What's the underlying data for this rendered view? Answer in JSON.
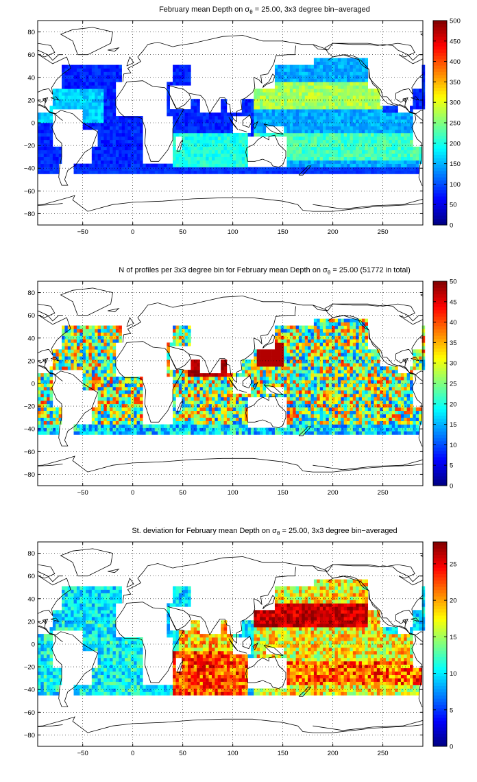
{
  "chart_data": [
    {
      "type": "heatmap",
      "title_prefix": "February mean Depth on ",
      "title_sigma": "σ",
      "title_sub": "θ",
      "title_suffix": " = 25.00, 3x3 degree bin−averaged",
      "x_ticks": [
        "−50",
        "0",
        "50",
        "100",
        "150",
        "200",
        "250"
      ],
      "x_tick_values": [
        -50,
        0,
        50,
        100,
        150,
        200,
        250
      ],
      "y_ticks": [
        "80",
        "60",
        "40",
        "20",
        "0",
        "−20",
        "−40",
        "−60",
        "−80"
      ],
      "y_tick_values": [
        80,
        60,
        40,
        20,
        0,
        -20,
        -40,
        -60,
        -80
      ],
      "xlim": [
        -95,
        290
      ],
      "ylim": [
        -90,
        90
      ],
      "grid": true,
      "grid_style": "dotted",
      "colormap": "jet",
      "colorbar_ticks": [
        "0",
        "50",
        "100",
        "150",
        "200",
        "250",
        "300",
        "350",
        "400",
        "450",
        "500"
      ],
      "colorbar_values": [
        0,
        50,
        100,
        150,
        200,
        250,
        300,
        350,
        400,
        450,
        500
      ],
      "clim": [
        0,
        500
      ],
      "field": "mean_depth",
      "bin_size_deg": 3
    },
    {
      "type": "heatmap",
      "title_prefix": "N of profiles per 3x3 degree bin for February mean Depth on ",
      "title_sigma": "σ",
      "title_sub": "θ",
      "title_suffix": " = 25.00 (51772 in total)",
      "x_ticks": [
        "−50",
        "0",
        "50",
        "100",
        "150",
        "200",
        "250"
      ],
      "x_tick_values": [
        -50,
        0,
        50,
        100,
        150,
        200,
        250
      ],
      "y_ticks": [
        "80",
        "60",
        "40",
        "20",
        "0",
        "−20",
        "−40",
        "−60",
        "−80"
      ],
      "y_tick_values": [
        80,
        60,
        40,
        20,
        0,
        -20,
        -40,
        -60,
        -80
      ],
      "xlim": [
        -95,
        290
      ],
      "ylim": [
        -90,
        90
      ],
      "grid": true,
      "grid_style": "dotted",
      "colormap": "jet",
      "colorbar_ticks": [
        "0",
        "5",
        "10",
        "15",
        "20",
        "25",
        "30",
        "35",
        "40",
        "45",
        "50"
      ],
      "colorbar_values": [
        0,
        5,
        10,
        15,
        20,
        25,
        30,
        35,
        40,
        45,
        50
      ],
      "clim": [
        0,
        50
      ],
      "field": "profile_count",
      "bin_size_deg": 3
    },
    {
      "type": "heatmap",
      "title_prefix": "St. deviation for February mean Depth on ",
      "title_sigma": "σ",
      "title_sub": "θ",
      "title_suffix": " = 25.00, 3x3 degree bin−averaged",
      "x_ticks": [
        "−50",
        "0",
        "50",
        "100",
        "150",
        "200",
        "250"
      ],
      "x_tick_values": [
        -50,
        0,
        50,
        100,
        150,
        200,
        250
      ],
      "y_ticks": [
        "80",
        "60",
        "40",
        "20",
        "0",
        "−20",
        "−40",
        "−60",
        "−80"
      ],
      "y_tick_values": [
        80,
        60,
        40,
        20,
        0,
        -20,
        -40,
        -60,
        -80
      ],
      "xlim": [
        -95,
        290
      ],
      "ylim": [
        -90,
        90
      ],
      "grid": true,
      "grid_style": "dotted",
      "colormap": "jet",
      "colorbar_ticks": [
        "0",
        "5",
        "10",
        "15",
        "20",
        "25"
      ],
      "colorbar_values": [
        0,
        5,
        10,
        15,
        20,
        25
      ],
      "clim": [
        0,
        28
      ],
      "field": "std_dev",
      "bin_size_deg": 3
    }
  ]
}
